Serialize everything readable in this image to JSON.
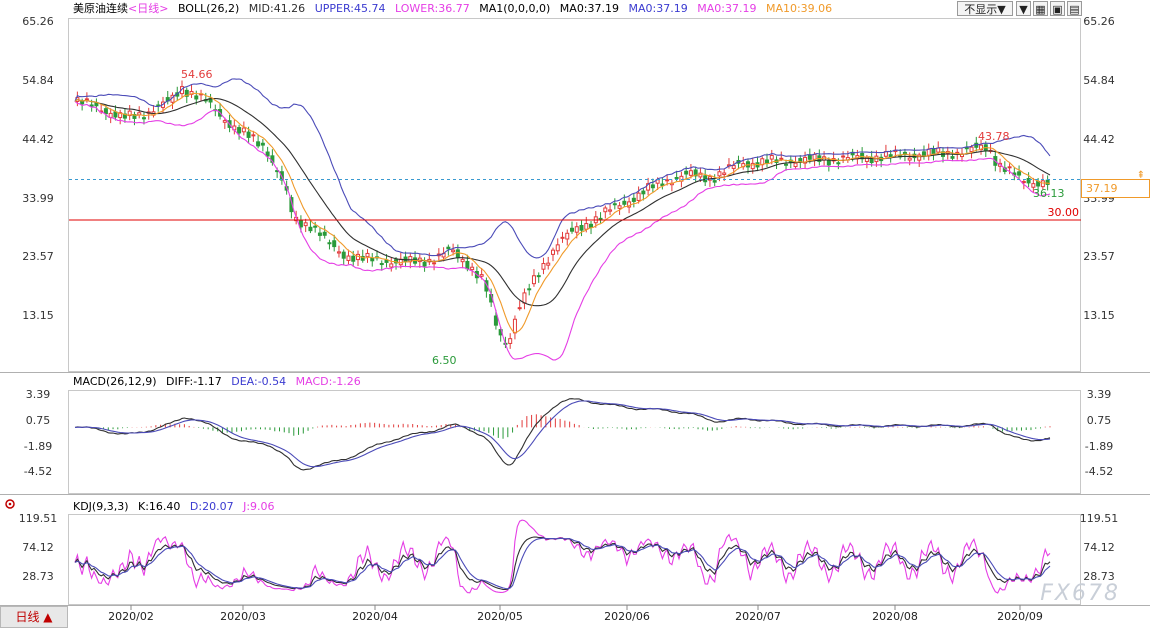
{
  "header": {
    "instrument": "美原油连续",
    "period_tag": "<日线>",
    "boll_label": "BOLL(26,2)",
    "mid": "MID:41.26",
    "upper": "UPPER:45.74",
    "lower": "LOWER:36.77",
    "ma_label": "MA1(0,0,0,0)",
    "ma0a": "MA0:37.19",
    "ma0b": "MA0:37.19",
    "ma0c": "MA0:37.19",
    "ma10": "MA10:39.06"
  },
  "controls": {
    "dropdown": "不显示▼",
    "btn1": "▼",
    "btn2": "▦",
    "btn3": "▣",
    "btn4": "▤"
  },
  "price_axis": {
    "labels": [
      "65.26",
      "54.84",
      "44.42",
      "33.99",
      "23.57",
      "13.15"
    ],
    "current": "37.19",
    "ref_line": "30.00"
  },
  "annotations": {
    "high_feb": "54.66",
    "low_apr": "6.50",
    "high_aug": "43.78",
    "low_sep": "36.13"
  },
  "macd": {
    "label": "MACD(26,12,9)",
    "diff": "DIFF:-1.17",
    "dea": "DEA:-0.54",
    "macd": "MACD:-1.26",
    "axis": [
      "3.39",
      "0.75",
      "-1.89",
      "-4.52"
    ]
  },
  "kdj": {
    "label": "KDJ(9,3,3)",
    "k": "K:16.40",
    "d": "D:20.07",
    "j": "J:9.06",
    "axis": [
      "119.51",
      "74.12",
      "28.73"
    ]
  },
  "time_axis": [
    "2020/02",
    "2020/03",
    "2020/04",
    "2020/05",
    "2020/06",
    "2020/07",
    "2020/08",
    "2020/09"
  ],
  "bottom_button": "日线 ▲",
  "watermark": "FX678",
  "colors": {
    "up": "#e23b3b",
    "down": "#2a9a3a",
    "upper_band": "#4b4bb8",
    "mid_band": "#303030",
    "lower_band": "#e53ee5",
    "ma10": "#f09a2a",
    "ref_line": "#e00000"
  }
}
